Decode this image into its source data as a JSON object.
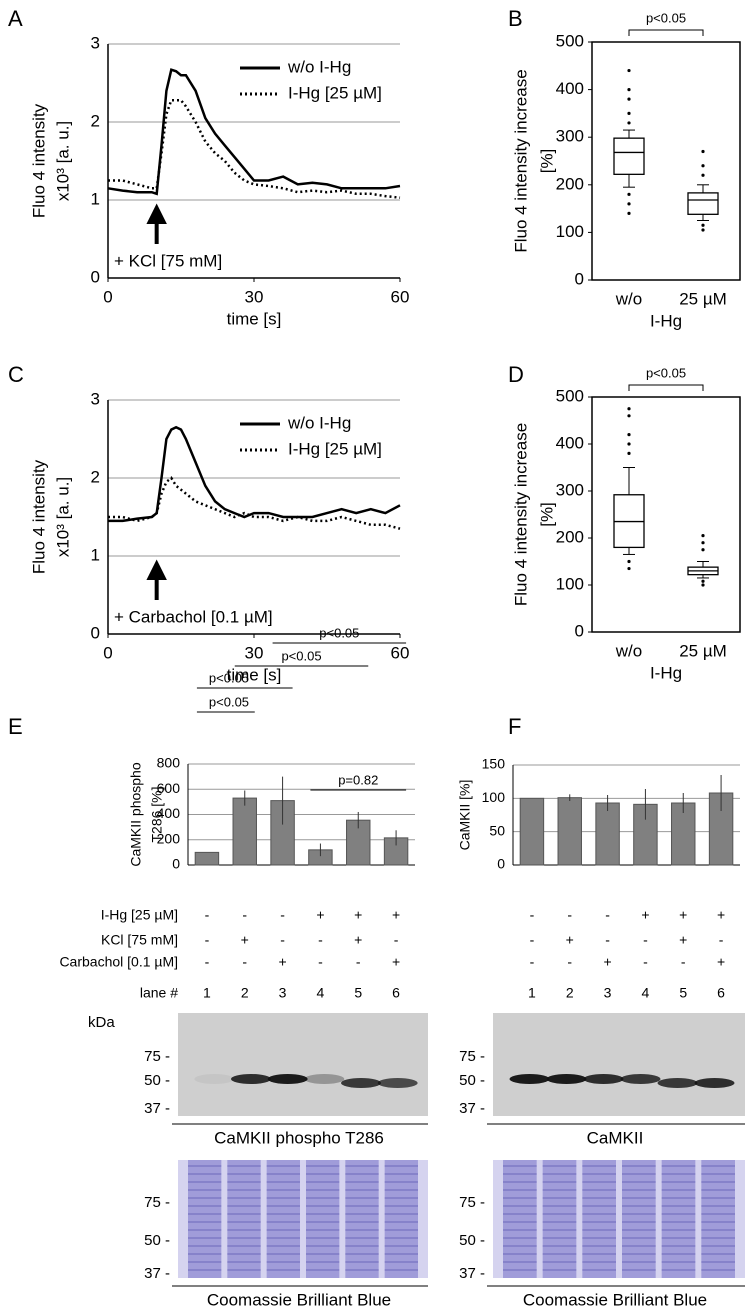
{
  "chart_data": [
    {
      "type": "line",
      "panel": "A",
      "ylabel": [
        "Fluo 4 intensity",
        "x10³ [a. u.]"
      ],
      "xlabel": "time [s]",
      "x": [
        0,
        3,
        6,
        9,
        10,
        11,
        12,
        13,
        14,
        15,
        16,
        18,
        20,
        22,
        24,
        26,
        28,
        30,
        33,
        36,
        39,
        42,
        45,
        48,
        51,
        54,
        57,
        60
      ],
      "series": [
        {
          "name": "w/o I-Hg",
          "color": "#000000",
          "style": "solid",
          "values": [
            1.15,
            1.12,
            1.1,
            1.1,
            1.08,
            1.7,
            2.4,
            2.67,
            2.65,
            2.6,
            2.6,
            2.4,
            2.05,
            1.85,
            1.7,
            1.55,
            1.4,
            1.25,
            1.25,
            1.3,
            1.2,
            1.22,
            1.2,
            1.15,
            1.15,
            1.15,
            1.15,
            1.18
          ]
        },
        {
          "name": "I-Hg [25 µM]",
          "color": "#000000",
          "style": "dotted",
          "values": [
            1.25,
            1.25,
            1.2,
            1.15,
            1.15,
            1.6,
            2.1,
            2.28,
            2.28,
            2.28,
            2.2,
            2.0,
            1.75,
            1.6,
            1.5,
            1.35,
            1.25,
            1.2,
            1.18,
            1.15,
            1.1,
            1.12,
            1.1,
            1.12,
            1.08,
            1.08,
            1.05,
            1.03
          ]
        }
      ],
      "xlim": [
        0,
        60
      ],
      "xticks": [
        0,
        30,
        60
      ],
      "ylim": [
        0,
        3
      ],
      "yticks": [
        0,
        1,
        2,
        3
      ],
      "grid": true,
      "legend": "upper right",
      "annotation": "+ KCl [75 mM]",
      "arrow_x": 10
    },
    {
      "type": "box",
      "panel": "B",
      "ylabel": [
        "Fluo 4 intensity increase",
        "[%]"
      ],
      "xlabel": "I-Hg",
      "categories": [
        "w/o",
        "25 µM"
      ],
      "boxes": [
        {
          "min": 195,
          "q1": 222,
          "median": 268,
          "q3": 298,
          "max": 315,
          "outliers": [
            440,
            400,
            380,
            350,
            330,
            180,
            160,
            140
          ]
        },
        {
          "min": 125,
          "q1": 138,
          "median": 168,
          "q3": 183,
          "max": 200,
          "outliers": [
            270,
            240,
            220,
            115,
            105
          ]
        }
      ],
      "ylim": [
        0,
        500
      ],
      "yticks": [
        0,
        100,
        200,
        300,
        400,
        500
      ],
      "annotation": "p<0.05"
    },
    {
      "type": "line",
      "panel": "C",
      "ylabel": [
        "Fluo 4 intensity",
        "x10³ [a. u.]"
      ],
      "xlabel": "time [s]",
      "x": [
        0,
        3,
        6,
        9,
        10,
        11,
        12,
        13,
        14,
        15,
        16,
        18,
        20,
        22,
        24,
        26,
        28,
        30,
        33,
        36,
        39,
        42,
        45,
        48,
        51,
        54,
        57,
        60
      ],
      "series": [
        {
          "name": "w/o I-Hg",
          "color": "#000000",
          "style": "solid",
          "values": [
            1.45,
            1.45,
            1.48,
            1.5,
            1.55,
            2.0,
            2.5,
            2.62,
            2.65,
            2.62,
            2.5,
            2.2,
            1.9,
            1.7,
            1.6,
            1.55,
            1.5,
            1.55,
            1.55,
            1.5,
            1.5,
            1.5,
            1.55,
            1.6,
            1.55,
            1.6,
            1.55,
            1.65
          ]
        },
        {
          "name": "I-Hg [25 µM]",
          "color": "#000000",
          "style": "dotted",
          "values": [
            1.5,
            1.5,
            1.45,
            1.5,
            1.55,
            1.8,
            1.95,
            2.0,
            1.9,
            1.85,
            1.8,
            1.7,
            1.65,
            1.6,
            1.55,
            1.5,
            1.55,
            1.5,
            1.5,
            1.45,
            1.5,
            1.45,
            1.45,
            1.5,
            1.45,
            1.4,
            1.4,
            1.35
          ]
        }
      ],
      "xlim": [
        0,
        60
      ],
      "xticks": [
        0,
        30,
        60
      ],
      "ylim": [
        0,
        3
      ],
      "yticks": [
        0,
        1,
        2,
        3
      ],
      "grid": true,
      "legend": "upper right",
      "annotation": "+ Carbachol [0.1 µM]",
      "arrow_x": 10
    },
    {
      "type": "box",
      "panel": "D",
      "ylabel": [
        "Fluo 4 intensity increase",
        "[%]"
      ],
      "xlabel": "I-Hg",
      "categories": [
        "w/o",
        "25 µM"
      ],
      "boxes": [
        {
          "min": 165,
          "q1": 180,
          "median": 235,
          "q3": 292,
          "max": 350,
          "outliers": [
            475,
            460,
            420,
            400,
            380,
            150,
            135
          ]
        },
        {
          "min": 115,
          "q1": 122,
          "median": 130,
          "q3": 138,
          "max": 150,
          "outliers": [
            205,
            190,
            175,
            108,
            100
          ]
        }
      ],
      "ylim": [
        0,
        500
      ],
      "yticks": [
        0,
        100,
        200,
        300,
        400,
        500
      ],
      "annotation": "p<0.05"
    },
    {
      "type": "bar",
      "panel": "E",
      "ylabel": [
        "CaMKII phospho",
        "T286 [%]"
      ],
      "categories": [
        "1",
        "2",
        "3",
        "4",
        "5",
        "6"
      ],
      "values": [
        100,
        530,
        510,
        120,
        355,
        215
      ],
      "errors": [
        0,
        60,
        190,
        50,
        65,
        60
      ],
      "color": "#808080",
      "ylim": [
        0,
        800
      ],
      "yticks": [
        0,
        200,
        400,
        600,
        800
      ],
      "grid": true,
      "annotations": [
        "p<0.05",
        "p<0.05",
        "p<0.05",
        "p<0.05",
        "p=0.82"
      ],
      "lane_label": "lane #",
      "treatments": [
        {
          "label": "I-Hg [25 µM]",
          "marks": [
            "-",
            "-",
            "-",
            "+",
            "+",
            "+"
          ]
        },
        {
          "label": "KCl [75 mM]",
          "marks": [
            "-",
            "+",
            "-",
            "-",
            "+",
            "-"
          ]
        },
        {
          "label": "Carbachol [0.1 µM]",
          "marks": [
            "-",
            "-",
            "+",
            "-",
            "-",
            "+"
          ]
        }
      ]
    },
    {
      "type": "bar",
      "panel": "F",
      "ylabel": [
        "CaMKII [%]"
      ],
      "categories": [
        "1",
        "2",
        "3",
        "4",
        "5",
        "6"
      ],
      "values": [
        100,
        101,
        93,
        91,
        93,
        108
      ],
      "errors": [
        0,
        5,
        12,
        23,
        15,
        27
      ],
      "color": "#808080",
      "ylim": [
        0,
        150
      ],
      "yticks": [
        0,
        50,
        100,
        150
      ],
      "grid": true,
      "treatments": [
        {
          "marks": [
            "-",
            "-",
            "-",
            "+",
            "+",
            "+"
          ]
        },
        {
          "marks": [
            "-",
            "+",
            "-",
            "-",
            "+",
            "-"
          ]
        },
        {
          "marks": [
            "-",
            "-",
            "+",
            "-",
            "-",
            "+"
          ]
        }
      ]
    }
  ],
  "blots": [
    {
      "kda": "kDa",
      "markers": [
        "75 -",
        "50 -",
        "37 -"
      ],
      "caption": "CaMKII phospho T286"
    },
    {
      "markers": [
        "75 -",
        "50 -",
        "37 -"
      ],
      "caption": "CaMKII"
    },
    {
      "markers": [
        "75 -",
        "50 -",
        "37 -"
      ],
      "caption": "Coomassie Brilliant Blue"
    },
    {
      "markers": [
        "75 -",
        "50 -",
        "37 -"
      ],
      "caption": "Coomassie Brilliant Blue"
    }
  ]
}
